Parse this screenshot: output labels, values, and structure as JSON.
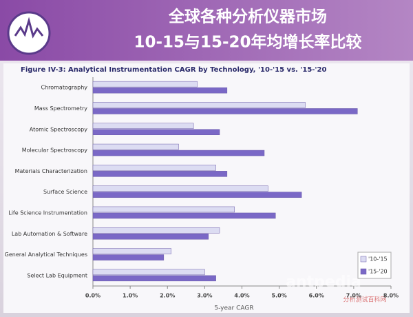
{
  "header": {
    "title_line1": "全球各种分析仪器市场",
    "title_line2": "10-15与15-20年均增长率比较"
  },
  "watermark": {
    "brand": "antpedia",
    "site": "分析测试百科网"
  },
  "chart_data": {
    "type": "bar",
    "title": "Figure IV-3: Analytical Instrumentation CAGR by Technology, '10-'15 vs. '15-'20",
    "x_label": "5-year CAGR",
    "categories": [
      "Chromatography",
      "Mass Spectrometry",
      "Atomic Spectroscopy",
      "Molecular Spectroscopy",
      "Materials Characterization",
      "Surface Science",
      "Life Science Instrumentation",
      "Lab Automation & Software",
      "General Analytical Techniques",
      "Select Lab Equipment"
    ],
    "series": [
      {
        "name": "'10-'15",
        "color": "#dcdcf2",
        "values": [
          2.8,
          5.7,
          2.7,
          2.3,
          3.3,
          4.7,
          3.8,
          3.4,
          2.1,
          3.0
        ]
      },
      {
        "name": "'15-'20",
        "color": "#7a68c6",
        "values": [
          3.6,
          7.1,
          3.4,
          4.6,
          3.6,
          5.6,
          4.9,
          3.1,
          1.9,
          3.3
        ]
      }
    ],
    "xlim": [
      0,
      8
    ],
    "xticks": [
      {
        "value": 0,
        "label": "0.0%"
      },
      {
        "value": 1,
        "label": "1.0%"
      },
      {
        "value": 2,
        "label": "2.0%"
      },
      {
        "value": 3,
        "label": "3.0%"
      },
      {
        "value": 4,
        "label": "4.0%"
      },
      {
        "value": 5,
        "label": "5.0%"
      },
      {
        "value": 6,
        "label": "6.0%"
      },
      {
        "value": 7,
        "label": "7.0%"
      },
      {
        "value": 8,
        "label": "8.0%"
      }
    ],
    "legend": "lower right"
  }
}
